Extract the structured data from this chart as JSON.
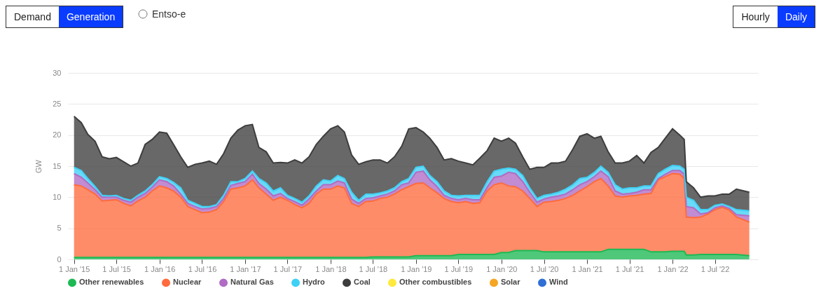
{
  "chart_data": {
    "type": "area",
    "stacked": true,
    "ylabel": "GW",
    "ylim": [
      0,
      30
    ],
    "yticks": [
      0,
      5,
      10,
      15,
      20,
      25,
      30
    ],
    "grid": "y",
    "legend": "bottom",
    "annotations": [
      "Demand",
      "Generation",
      "Entso-e",
      "Hourly",
      "Daily"
    ],
    "xlim": [
      "2014-12-06",
      "2023-01-01"
    ],
    "xticks": [
      {
        "value": "2015-01-01",
        "label": "1 Jan '15"
      },
      {
        "value": "2015-07-01",
        "label": "1 Jul '15"
      },
      {
        "value": "2016-01-01",
        "label": "1 Jan '16"
      },
      {
        "value": "2016-07-01",
        "label": "1 Jul '16"
      },
      {
        "value": "2017-01-01",
        "label": "1 Jan '17"
      },
      {
        "value": "2017-07-01",
        "label": "1 Jul '17"
      },
      {
        "value": "2018-01-01",
        "label": "1 Jan '18"
      },
      {
        "value": "2018-07-01",
        "label": "1 Jul '18"
      },
      {
        "value": "2019-01-01",
        "label": "1 Jan '19"
      },
      {
        "value": "2019-07-01",
        "label": "1 Jul '19"
      },
      {
        "value": "2020-01-01",
        "label": "1 Jan '20"
      },
      {
        "value": "2020-07-01",
        "label": "1 Jul '20"
      },
      {
        "value": "2021-01-01",
        "label": "1 Jan '21"
      },
      {
        "value": "2021-07-01",
        "label": "1 Jul '21"
      },
      {
        "value": "2022-01-01",
        "label": "1 Jan '22"
      },
      {
        "value": "2022-07-01",
        "label": "1 Jul '22"
      }
    ],
    "x": [
      "2015-01",
      "2015-02",
      "2015-03",
      "2015-04",
      "2015-05",
      "2015-06",
      "2015-07",
      "2015-08",
      "2015-09",
      "2015-10",
      "2015-11",
      "2015-12",
      "2016-01",
      "2016-02",
      "2016-03",
      "2016-04",
      "2016-05",
      "2016-06",
      "2016-07",
      "2016-08",
      "2016-09",
      "2016-10",
      "2016-11",
      "2016-12",
      "2017-01",
      "2017-02",
      "2017-03",
      "2017-04",
      "2017-05",
      "2017-06",
      "2017-07",
      "2017-08",
      "2017-09",
      "2017-10",
      "2017-11",
      "2017-12",
      "2018-01",
      "2018-02",
      "2018-03",
      "2018-04",
      "2018-05",
      "2018-06",
      "2018-07",
      "2018-08",
      "2018-09",
      "2018-10",
      "2018-11",
      "2018-12",
      "2019-01",
      "2019-02",
      "2019-03",
      "2019-04",
      "2019-05",
      "2019-06",
      "2019-07",
      "2019-08",
      "2019-09",
      "2019-10",
      "2019-11",
      "2019-12",
      "2020-01",
      "2020-02",
      "2020-03",
      "2020-04",
      "2020-05",
      "2020-06",
      "2020-07",
      "2020-08",
      "2020-09",
      "2020-10",
      "2020-11",
      "2020-12",
      "2021-01",
      "2021-02",
      "2021-03",
      "2021-04",
      "2021-05",
      "2021-06",
      "2021-07",
      "2021-08",
      "2021-09",
      "2021-10",
      "2021-11",
      "2021-12",
      "2022-01",
      "2022-02",
      "2022-02-20",
      "2022-03",
      "2022-04",
      "2022-05",
      "2022-06",
      "2022-07",
      "2022-08",
      "2022-09",
      "2022-10",
      "2022-11-25"
    ],
    "series": [
      {
        "name": "Other renewables",
        "color": "#1db954",
        "values": [
          0.3,
          0.3,
          0.3,
          0.3,
          0.3,
          0.3,
          0.3,
          0.3,
          0.3,
          0.3,
          0.3,
          0.3,
          0.3,
          0.3,
          0.3,
          0.3,
          0.3,
          0.3,
          0.3,
          0.3,
          0.3,
          0.3,
          0.3,
          0.3,
          0.3,
          0.3,
          0.3,
          0.3,
          0.3,
          0.3,
          0.3,
          0.3,
          0.3,
          0.3,
          0.3,
          0.3,
          0.3,
          0.3,
          0.3,
          0.3,
          0.3,
          0.3,
          0.4,
          0.4,
          0.4,
          0.4,
          0.4,
          0.4,
          0.6,
          0.6,
          0.6,
          0.6,
          0.6,
          0.6,
          0.8,
          0.8,
          0.8,
          0.8,
          0.8,
          0.8,
          1.1,
          1.1,
          1.4,
          1.4,
          1.4,
          1.4,
          1.2,
          1.2,
          1.2,
          1.2,
          1.2,
          1.2,
          1.2,
          1.2,
          1.2,
          1.6,
          1.6,
          1.6,
          1.6,
          1.6,
          1.6,
          1.2,
          1.2,
          1.2,
          1.3,
          1.3,
          1.3,
          0.7,
          0.7,
          0.8,
          0.8,
          0.8,
          0.8,
          0.8,
          0.8,
          0.6
        ]
      },
      {
        "name": "Nuclear",
        "color": "#ff6b3d",
        "values": [
          11.7,
          11.5,
          10.9,
          10.2,
          9.1,
          9.2,
          9.3,
          8.7,
          8.3,
          9.1,
          9.7,
          10.7,
          11.5,
          11.2,
          10.7,
          9.7,
          8.2,
          7.7,
          7.2,
          7.3,
          7.7,
          9.0,
          11.0,
          11.2,
          11.5,
          12.5,
          11.2,
          10.2,
          9.2,
          9.7,
          9.2,
          8.5,
          8.0,
          8.7,
          10.2,
          11.0,
          11.0,
          11.5,
          11.2,
          8.7,
          8.2,
          9.0,
          9.0,
          9.4,
          9.6,
          10.1,
          10.8,
          11.3,
          11.6,
          11.7,
          10.9,
          10.1,
          9.2,
          8.7,
          8.3,
          8.5,
          8.2,
          8.3,
          10.2,
          11.2,
          11.2,
          10.7,
          10.3,
          9.6,
          8.4,
          7.1,
          8.0,
          8.1,
          8.3,
          8.6,
          9.1,
          9.8,
          10.5,
          11.3,
          11.8,
          10.2,
          8.6,
          8.4,
          8.6,
          8.7,
          8.9,
          9.4,
          11.6,
          12.1,
          12.5,
          12.4,
          11.7,
          6.1,
          6.0,
          6.0,
          6.5,
          7.2,
          7.6,
          7.1,
          6.0,
          5.4
        ]
      },
      {
        "name": "Natural Gas",
        "color": "#b06cc4",
        "values": [
          1.8,
          1.4,
          1.1,
          0.7,
          0.6,
          0.5,
          0.4,
          0.5,
          0.6,
          0.6,
          0.6,
          0.6,
          1.0,
          1.0,
          0.8,
          0.5,
          0.5,
          0.5,
          0.6,
          0.6,
          0.5,
          0.5,
          0.6,
          0.7,
          0.7,
          0.9,
          0.7,
          0.8,
          0.7,
          0.6,
          0.3,
          0.5,
          0.4,
          0.7,
          0.5,
          0.7,
          0.7,
          0.8,
          0.8,
          0.7,
          0.5,
          0.5,
          0.5,
          0.4,
          0.5,
          0.5,
          0.8,
          0.6,
          1.8,
          1.9,
          1.3,
          1.0,
          0.5,
          0.5,
          0.5,
          0.5,
          0.6,
          0.5,
          0.6,
          1.2,
          1.1,
          2.2,
          2.1,
          1.5,
          1.0,
          0.7,
          0.5,
          0.7,
          0.7,
          0.7,
          0.9,
          1.0,
          0.8,
          0.8,
          1.2,
          1.5,
          0.8,
          0.5,
          0.4,
          0.5,
          0.7,
          0.6,
          0.2,
          0.4,
          0.5,
          0.6,
          0.7,
          1.7,
          1.6,
          0.5,
          0.2,
          0.3,
          0.2,
          0.3,
          0.4,
          1.0
        ]
      },
      {
        "name": "Hydro",
        "color": "#3fd0f5",
        "values": [
          1.0,
          1.1,
          0.7,
          0.5,
          0.3,
          0.2,
          0.3,
          0.3,
          0.3,
          0.3,
          0.4,
          0.4,
          0.5,
          0.5,
          0.6,
          1.0,
          0.5,
          0.5,
          0.4,
          0.3,
          0.3,
          0.5,
          0.6,
          0.3,
          0.5,
          0.5,
          0.8,
          1.0,
          0.8,
          0.9,
          0.5,
          0.5,
          0.5,
          0.5,
          0.8,
          0.8,
          0.6,
          0.9,
          0.7,
          1.1,
          0.5,
          0.7,
          0.6,
          0.5,
          0.5,
          0.5,
          0.5,
          0.7,
          0.8,
          0.8,
          0.7,
          0.8,
          0.7,
          0.5,
          0.6,
          0.5,
          0.7,
          0.7,
          0.9,
          1.0,
          1.1,
          0.7,
          0.7,
          1.0,
          0.7,
          0.6,
          0.6,
          0.5,
          0.6,
          0.8,
          0.8,
          1.0,
          0.7,
          0.7,
          0.8,
          0.7,
          1.0,
          0.8,
          0.9,
          0.7,
          0.6,
          0.6,
          0.8,
          0.8,
          0.8,
          0.7,
          0.8,
          1.5,
          1.2,
          0.7,
          0.5,
          0.4,
          0.3,
          0.3,
          0.8,
          0.8
        ]
      },
      {
        "name": "Coal",
        "color": "#3d3d3d",
        "values": [
          8.2,
          7.7,
          7.1,
          7.3,
          6.2,
          6.0,
          6.1,
          5.9,
          5.5,
          5.2,
          7.5,
          7.3,
          7.2,
          7.3,
          6.1,
          5.0,
          5.3,
          6.3,
          7.0,
          7.3,
          6.5,
          6.7,
          7.0,
          8.3,
          8.5,
          7.5,
          5.0,
          5.0,
          4.5,
          4.1,
          5.2,
          6.2,
          6.3,
          6.3,
          6.7,
          7.0,
          8.4,
          8.0,
          7.5,
          6.0,
          5.8,
          5.2,
          5.5,
          5.3,
          4.5,
          5.0,
          5.7,
          8.0,
          6.4,
          5.5,
          6.0,
          5.5,
          5.0,
          5.9,
          5.6,
          5.2,
          4.9,
          6.0,
          5.0,
          5.3,
          4.5,
          4.8,
          4.2,
          3.0,
          3.0,
          5.0,
          4.5,
          5.0,
          4.7,
          4.5,
          5.7,
          6.8,
          7.0,
          5.5,
          4.8,
          3.3,
          3.5,
          4.2,
          4.3,
          5.2,
          3.7,
          5.4,
          4.2,
          5.0,
          5.9,
          5.0,
          4.8,
          2.5,
          2.0,
          2.0,
          2.2,
          1.5,
          1.6,
          2.0,
          3.3,
          3.0
        ]
      },
      {
        "name": "Other combustibles",
        "color": "#ffea3d",
        "values": [
          null,
          null,
          null,
          null,
          null,
          null,
          null,
          null,
          null,
          null,
          null,
          null,
          null,
          null,
          null,
          null,
          null,
          null,
          null,
          null,
          null,
          null,
          null,
          null,
          null,
          null,
          null,
          null,
          null,
          null,
          null,
          null,
          null,
          null,
          null,
          null,
          null,
          null,
          null,
          null,
          null,
          null,
          null,
          null,
          null,
          null,
          null,
          null,
          null,
          null,
          null,
          null,
          null,
          null,
          null,
          null,
          null,
          null,
          null,
          null,
          null,
          null,
          null,
          null,
          null,
          null,
          null,
          null,
          null,
          null,
          null,
          null,
          null,
          null,
          null,
          null,
          null,
          null,
          null,
          null,
          null,
          null,
          null,
          null,
          null,
          null,
          null,
          null,
          null,
          null,
          null,
          null,
          null,
          null,
          null,
          null
        ]
      },
      {
        "name": "Solar",
        "color": "#f5a623",
        "values": [
          null,
          null,
          null,
          null,
          null,
          null,
          null,
          null,
          null,
          null,
          null,
          null,
          null,
          null,
          null,
          null,
          null,
          null,
          null,
          null,
          null,
          null,
          null,
          null,
          null,
          null,
          null,
          null,
          null,
          null,
          null,
          null,
          null,
          null,
          null,
          null,
          null,
          null,
          null,
          null,
          null,
          null,
          null,
          null,
          null,
          null,
          null,
          null,
          null,
          null,
          null,
          null,
          null,
          null,
          null,
          null,
          null,
          null,
          null,
          null,
          null,
          null,
          null,
          null,
          null,
          null,
          null,
          null,
          null,
          null,
          null,
          null,
          null,
          null,
          null,
          null,
          null,
          null,
          null,
          null,
          null,
          null,
          null,
          null,
          null,
          null,
          null,
          null,
          null,
          null,
          null,
          null,
          null,
          null,
          null,
          null
        ]
      },
      {
        "name": "Wind",
        "color": "#2f6fd6",
        "values": [
          null,
          null,
          null,
          null,
          null,
          null,
          null,
          null,
          null,
          null,
          null,
          null,
          null,
          null,
          null,
          null,
          null,
          null,
          null,
          null,
          null,
          null,
          null,
          null,
          null,
          null,
          null,
          null,
          null,
          null,
          null,
          null,
          null,
          null,
          null,
          null,
          null,
          null,
          null,
          null,
          null,
          null,
          null,
          null,
          null,
          null,
          null,
          null,
          null,
          null,
          null,
          null,
          null,
          null,
          null,
          null,
          null,
          null,
          null,
          null,
          null,
          null,
          null,
          null,
          null,
          null,
          null,
          null,
          null,
          null,
          null,
          null,
          null,
          null,
          null,
          null,
          null,
          null,
          null,
          null,
          null,
          null,
          null,
          null,
          null,
          null,
          null,
          null,
          null,
          null,
          null,
          null,
          null,
          null,
          null,
          null
        ]
      }
    ]
  }
}
